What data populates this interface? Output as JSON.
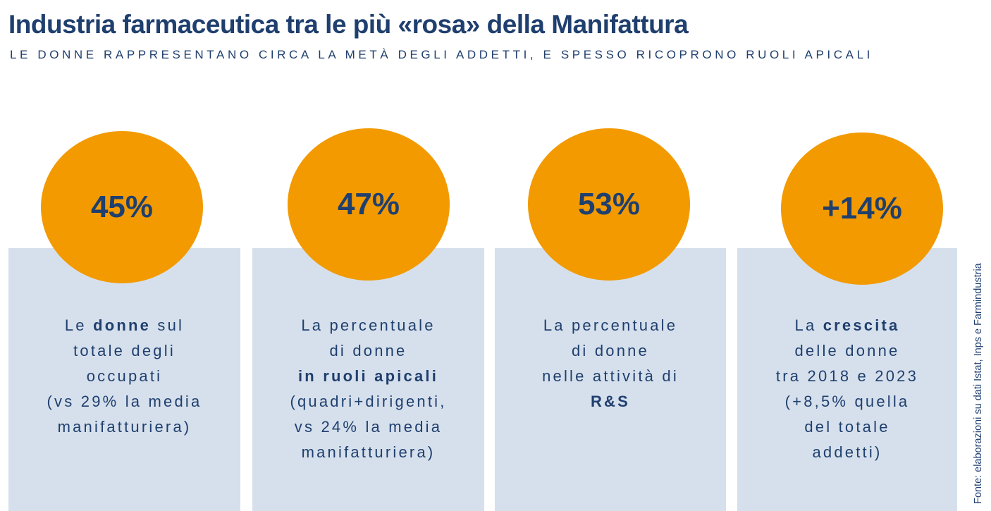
{
  "header": {
    "title": "Industria farmaceutica tra le più «rosa» della Manifattura",
    "subtitle": "LE DONNE RAPPRESENTANO CIRCA LA METÀ DEGLI ADDETTI, E SPESSO RICOPRONO RUOLI APICALI"
  },
  "colors": {
    "accent": "#f29a00",
    "text": "#1f3f6e",
    "panel": "#d6e0ec"
  },
  "stats": [
    {
      "value": "45%",
      "lines": [
        [
          {
            "t": "Le "
          },
          {
            "t": "donne",
            "b": true
          },
          {
            "t": " sul"
          }
        ],
        [
          {
            "t": "totale degli"
          }
        ],
        [
          {
            "t": "occupati"
          }
        ],
        [
          {
            "t": "(vs 29% la media"
          }
        ],
        [
          {
            "t": "manifatturiera)"
          }
        ]
      ]
    },
    {
      "value": "47%",
      "lines": [
        [
          {
            "t": "La percentuale"
          }
        ],
        [
          {
            "t": "di donne"
          }
        ],
        [
          {
            "t": "in ruoli apicali",
            "b": true
          }
        ],
        [
          {
            "t": "(quadri+dirigenti,"
          }
        ],
        [
          {
            "t": "vs 24% la media"
          }
        ],
        [
          {
            "t": "manifatturiera)"
          }
        ]
      ]
    },
    {
      "value": "53%",
      "lines": [
        [
          {
            "t": "La percentuale"
          }
        ],
        [
          {
            "t": "di donne"
          }
        ],
        [
          {
            "t": "nelle attività di"
          }
        ],
        [
          {
            "t": "R&S",
            "b": true
          }
        ]
      ]
    },
    {
      "value": "+14%",
      "lines": [
        [
          {
            "t": "La "
          },
          {
            "t": "crescita",
            "b": true
          }
        ],
        [
          {
            "t": "delle donne"
          }
        ],
        [
          {
            "t": "tra 2018 e 2023"
          }
        ],
        [
          {
            "t": "(+8,5% quella"
          }
        ],
        [
          {
            "t": "del totale"
          }
        ],
        [
          {
            "t": "addetti)"
          }
        ]
      ]
    }
  ],
  "source": "Fonte: elaborazioni su dati Istat, Inps e Farmindustria"
}
